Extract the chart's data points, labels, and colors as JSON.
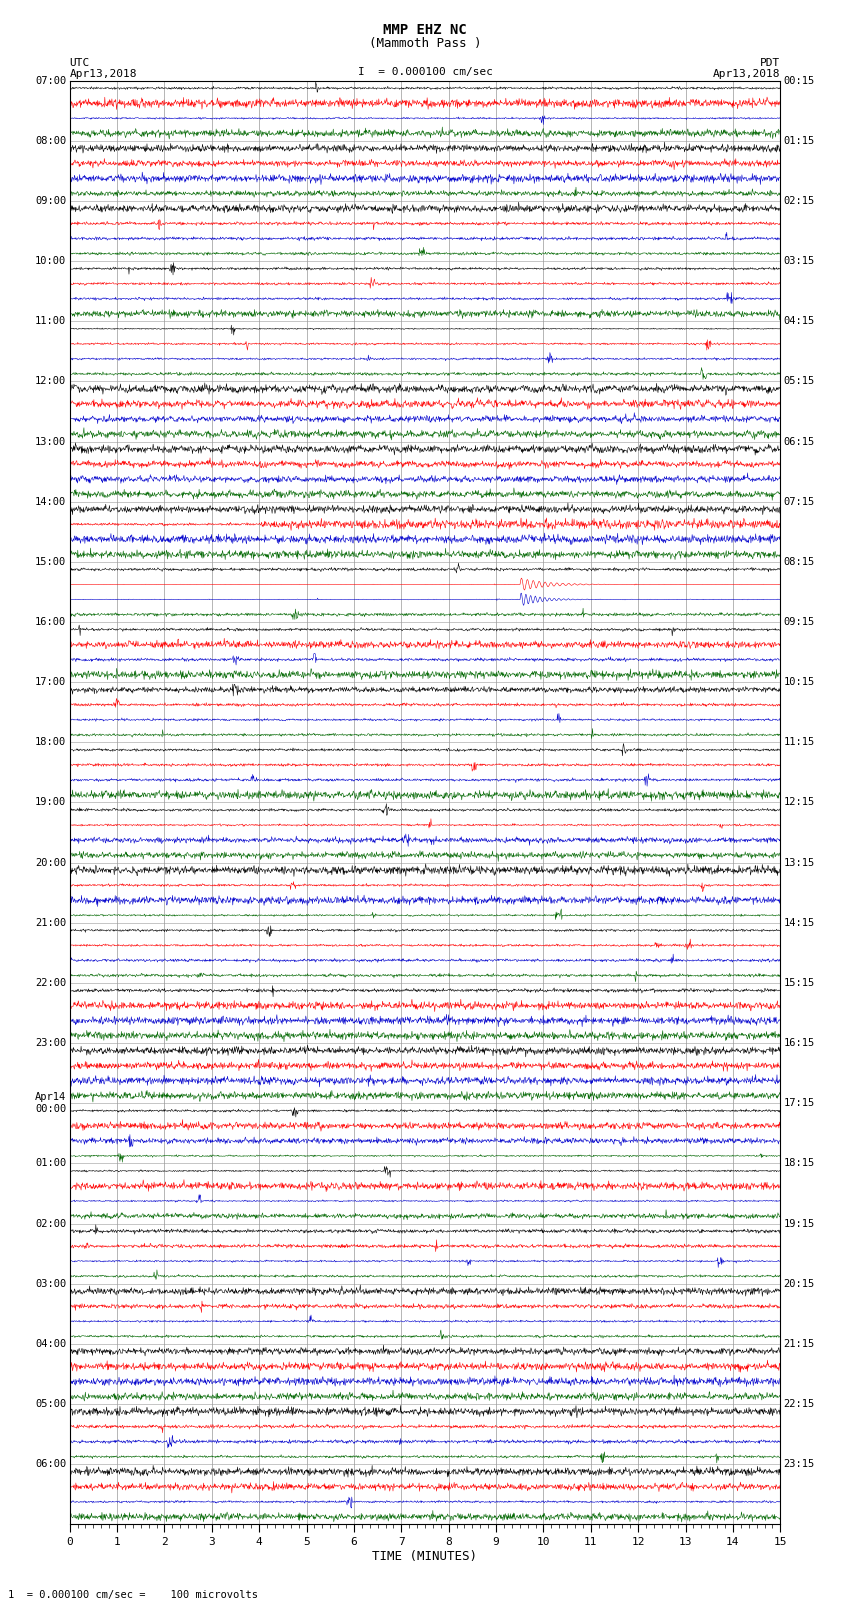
{
  "title_line1": "MMP EHZ NC",
  "title_line2": "(Mammoth Pass )",
  "scale_label": "= 0.000100 cm/sec",
  "scale_bar_char": "I",
  "utc_label": "UTC",
  "utc_date": "Apr13,2018",
  "pdt_label": "PDT",
  "pdt_date": "Apr13,2018",
  "xlabel": "TIME (MINUTES)",
  "footnote": "1  = 0.000100 cm/sec =    100 microvolts",
  "background_color": "#ffffff",
  "trace_colors": [
    "#000000",
    "#ff0000",
    "#0000cc",
    "#006600"
  ],
  "grid_color": "#999999",
  "x_ticks": [
    0,
    1,
    2,
    3,
    4,
    5,
    6,
    7,
    8,
    9,
    10,
    11,
    12,
    13,
    14,
    15
  ],
  "left_labels": [
    "07:00",
    "08:00",
    "09:00",
    "10:00",
    "11:00",
    "12:00",
    "13:00",
    "14:00",
    "15:00",
    "16:00",
    "17:00",
    "18:00",
    "19:00",
    "20:00",
    "21:00",
    "22:00",
    "23:00",
    "Apr14\n00:00",
    "01:00",
    "02:00",
    "03:00",
    "04:00",
    "05:00",
    "06:00"
  ],
  "right_labels": [
    "00:15",
    "01:15",
    "02:15",
    "03:15",
    "04:15",
    "05:15",
    "06:15",
    "07:15",
    "08:15",
    "09:15",
    "10:15",
    "11:15",
    "12:15",
    "13:15",
    "14:15",
    "15:15",
    "16:15",
    "17:15",
    "18:15",
    "19:15",
    "20:15",
    "21:15",
    "22:15",
    "23:15"
  ],
  "n_rows": 24,
  "n_traces_per_row": 4,
  "x_min": 0,
  "x_max": 15,
  "fig_width": 8.5,
  "fig_height": 16.13
}
